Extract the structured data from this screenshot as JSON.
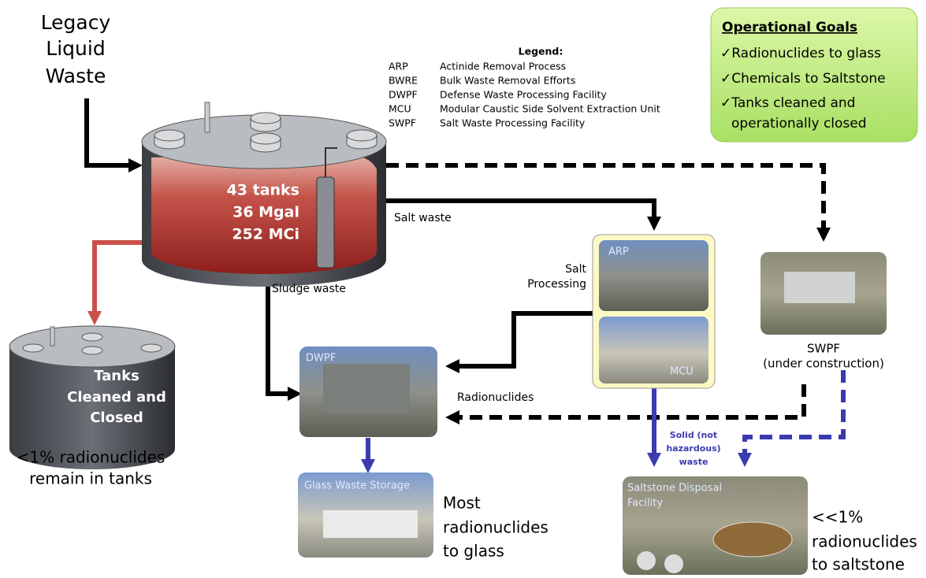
{
  "source": {
    "lines": [
      "Legacy",
      "Liquid",
      "Waste"
    ]
  },
  "legend": {
    "title": "Legend:",
    "entries": [
      {
        "abbr": "ARP",
        "text": "Actinide Removal Process"
      },
      {
        "abbr": "BWRE",
        "text": "Bulk Waste Removal Efforts"
      },
      {
        "abbr": "DWPF",
        "text": "Defense Waste Processing Facility"
      },
      {
        "abbr": "MCU",
        "text": "Modular Caustic Side Solvent Extraction Unit"
      },
      {
        "abbr": "SWPF",
        "text": "Salt Waste Processing Facility"
      }
    ]
  },
  "goals": {
    "title": "Operational Goals",
    "lines": [
      "✓Radionuclides to glass",
      "✓Chemicals to Saltstone",
      "✓Tanks cleaned and",
      "operationally closed"
    ]
  },
  "tank": {
    "lines": [
      "43 tanks",
      "36 Mgal",
      "252 MCi"
    ]
  },
  "flows": {
    "salt_waste": "Salt waste",
    "sludge_waste": "Sludge waste",
    "salt_processing": [
      "Salt",
      "Processing"
    ],
    "radionuclides": "Radionuclides",
    "solid_waste": [
      "Solid (not",
      "hazardous)",
      "waste"
    ]
  },
  "closed_tank": {
    "lines": [
      "Tanks",
      "Cleaned and",
      "Closed"
    ],
    "note": [
      "<1% radionuclides",
      "remain in tanks"
    ]
  },
  "facilities": {
    "arp": "ARP",
    "mcu": "MCU",
    "dwpf": "DWPF",
    "swpf": [
      "SWPF",
      "(under construction)"
    ],
    "glass": "Glass Waste Storage",
    "saltstone": [
      "Saltstone Disposal",
      "Facility"
    ]
  },
  "outcomes": {
    "glass": [
      "Most",
      "radionuclides",
      "to glass"
    ],
    "saltstone": [
      "<<1%",
      "radionuclides",
      "to saltstone"
    ]
  }
}
